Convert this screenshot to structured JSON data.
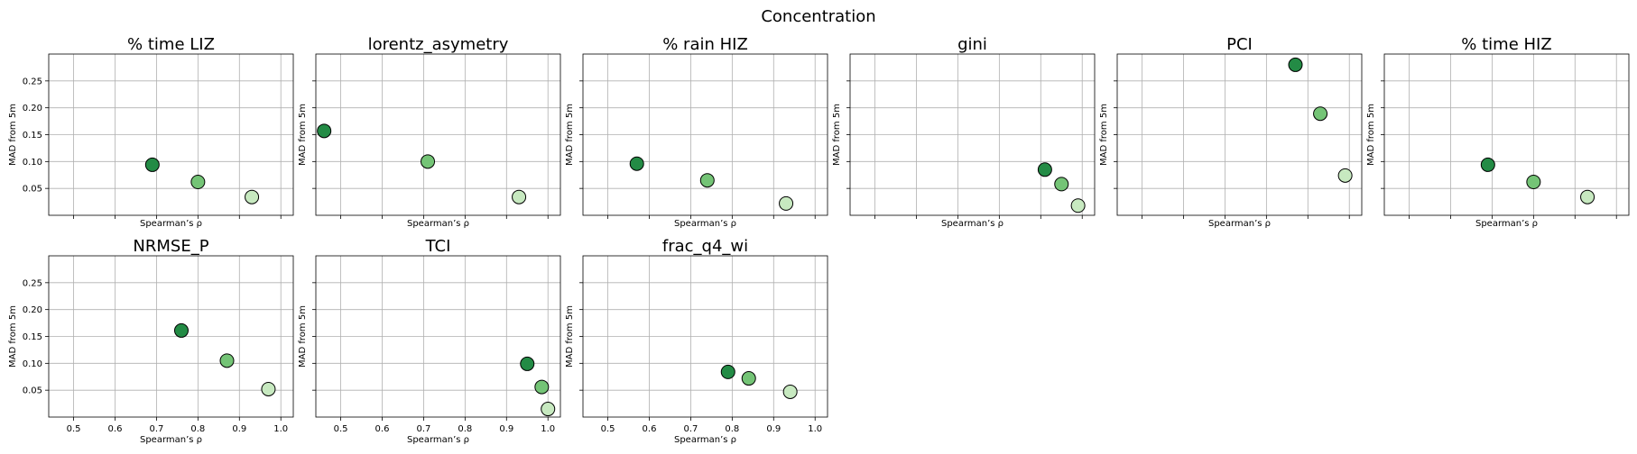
{
  "figure": {
    "suptitle": "Concentration"
  },
  "colors": {
    "dark": "#238b45",
    "medium": "#74c476",
    "light": "#c7e9c0",
    "grid": "#b0b0b0",
    "edge": "#000000"
  },
  "chart_data": [
    {
      "type": "scatter",
      "title": "% time LIZ",
      "xlabel": "Spearman’s ρ",
      "ylabel": "MAD from 5m",
      "x": [
        0.69,
        0.8,
        0.93
      ],
      "y": [
        0.094,
        0.062,
        0.034
      ],
      "xlim": [
        0.44,
        1.03
      ],
      "ylim": [
        0.0,
        0.3
      ],
      "grid": true
    },
    {
      "type": "scatter",
      "title": "lorentz_asymetry",
      "xlabel": "Spearman’s ρ",
      "ylabel": "MAD from 5m",
      "x": [
        0.46,
        0.71,
        0.93
      ],
      "y": [
        0.157,
        0.1,
        0.034
      ],
      "xlim": [
        0.44,
        1.03
      ],
      "ylim": [
        0.0,
        0.3
      ],
      "grid": true
    },
    {
      "type": "scatter",
      "title": "% rain HIZ",
      "xlabel": "Spearman’s ρ",
      "ylabel": "MAD from 5m",
      "x": [
        0.57,
        0.74,
        0.93
      ],
      "y": [
        0.096,
        0.065,
        0.022
      ],
      "xlim": [
        0.44,
        1.03
      ],
      "ylim": [
        0.0,
        0.3
      ],
      "grid": true
    },
    {
      "type": "scatter",
      "title": "gini",
      "xlabel": "Spearman’s ρ",
      "ylabel": "MAD from 5m",
      "x": [
        0.91,
        0.95,
        0.99
      ],
      "y": [
        0.085,
        0.058,
        0.018
      ],
      "xlim": [
        0.44,
        1.03
      ],
      "ylim": [
        0.0,
        0.3
      ],
      "grid": true
    },
    {
      "type": "scatter",
      "title": "PCI",
      "xlabel": "Spearman’s ρ",
      "ylabel": "MAD from 5m",
      "x": [
        0.87,
        0.93,
        0.99
      ],
      "y": [
        0.28,
        0.189,
        0.074
      ],
      "xlim": [
        0.44,
        1.03
      ],
      "ylim": [
        0.0,
        0.3
      ],
      "grid": true
    },
    {
      "type": "scatter",
      "title": "% time HIZ",
      "xlabel": "Spearman’s ρ",
      "ylabel": "MAD from 5m",
      "x": [
        0.69,
        0.8,
        0.93
      ],
      "y": [
        0.094,
        0.062,
        0.034
      ],
      "xlim": [
        0.44,
        1.03
      ],
      "ylim": [
        0.0,
        0.3
      ],
      "grid": true
    },
    {
      "type": "scatter",
      "title": "NRMSE_P",
      "xlabel": "Spearman’s ρ",
      "ylabel": "MAD from 5m",
      "x": [
        0.76,
        0.87,
        0.97
      ],
      "y": [
        0.161,
        0.105,
        0.052
      ],
      "xlim": [
        0.44,
        1.03
      ],
      "ylim": [
        0.0,
        0.3
      ],
      "grid": true
    },
    {
      "type": "scatter",
      "title": "TCI",
      "xlabel": "Spearman’s ρ",
      "ylabel": "MAD from 5m",
      "x": [
        0.95,
        0.985,
        1.0
      ],
      "y": [
        0.099,
        0.056,
        0.015
      ],
      "xlim": [
        0.44,
        1.03
      ],
      "ylim": [
        0.0,
        0.3
      ],
      "grid": true
    },
    {
      "type": "scatter",
      "title": "frac_q4_wi",
      "xlabel": "Spearman’s ρ",
      "ylabel": "MAD from 5m",
      "x": [
        0.79,
        0.84,
        0.94
      ],
      "y": [
        0.084,
        0.072,
        0.047
      ],
      "xlim": [
        0.44,
        1.03
      ],
      "ylim": [
        0.0,
        0.3
      ],
      "grid": true
    }
  ],
  "axes": {
    "x_ticks": [
      "0.5",
      "0.6",
      "0.7",
      "0.8",
      "0.9",
      "1.0"
    ],
    "y_ticks": [
      "0.05",
      "0.10",
      "0.15",
      "0.20",
      "0.25"
    ]
  }
}
